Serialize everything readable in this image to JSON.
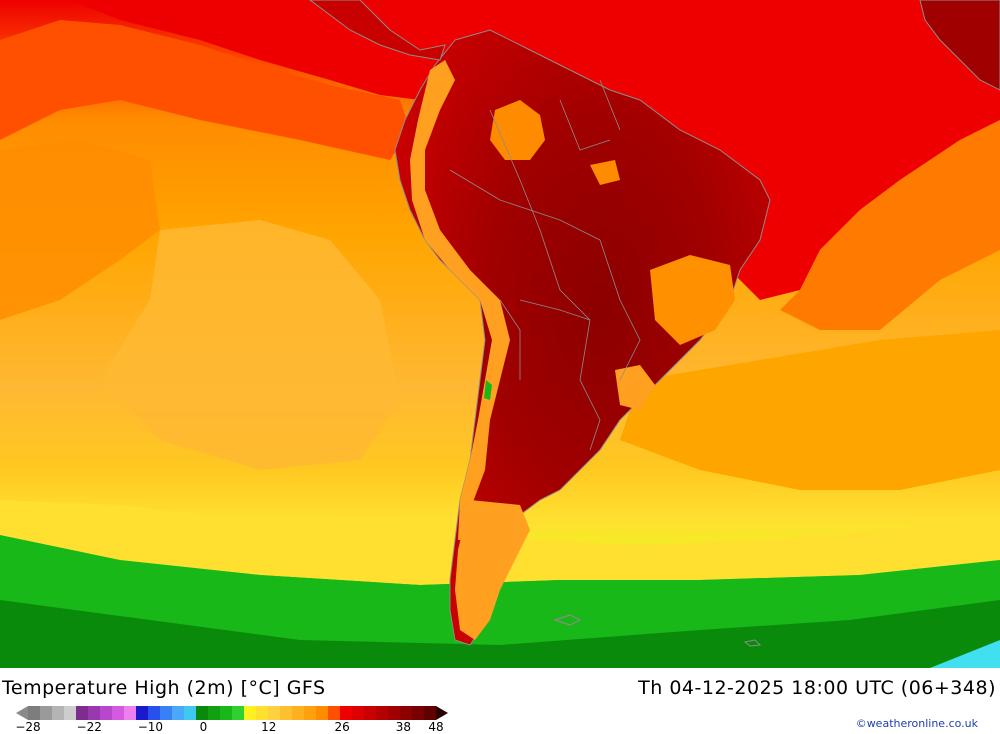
{
  "map": {
    "title": "Temperature High (2m) [°C] GFS",
    "datetime": "Th 04-12-2025 18:00 UTC (06+348)",
    "credit": "©weatheronline.co.uk",
    "region": "South America",
    "colors": {
      "ocean_warm": "#ffa500",
      "ocean_mid": "#ffb833",
      "ocean_cool": "#ffd700",
      "hot_red": "#ee0000",
      "very_hot": "#c00000",
      "extreme": "#960000",
      "cold_green": "#18b818",
      "cold_green_dark": "#0a8a0a",
      "coastline": "#8c8c8c"
    }
  },
  "legend": {
    "min_label": "−28",
    "max_label": "48",
    "tick_labels": [
      "−28",
      "−22",
      "−10",
      "0",
      "12",
      "26",
      "38",
      "48"
    ],
    "colors": [
      "#7d7d7d",
      "#9a9a9a",
      "#b4b4b4",
      "#cdcdcd",
      "#7c2d8e",
      "#9a38b0",
      "#b747cc",
      "#d45ae0",
      "#ee80ee",
      "#1a1acc",
      "#2850ee",
      "#3a80f5",
      "#4aa8f8",
      "#40c8f0",
      "#0a8a0a",
      "#10a010",
      "#18b818",
      "#30d030",
      "#fff020",
      "#ffe030",
      "#ffd040",
      "#ffc030",
      "#ffb020",
      "#ffa010",
      "#ff8c00",
      "#ff5000",
      "#ee0000",
      "#dd0000",
      "#c80000",
      "#b40000",
      "#a00000",
      "#8c0000",
      "#780000",
      "#600000"
    ]
  }
}
